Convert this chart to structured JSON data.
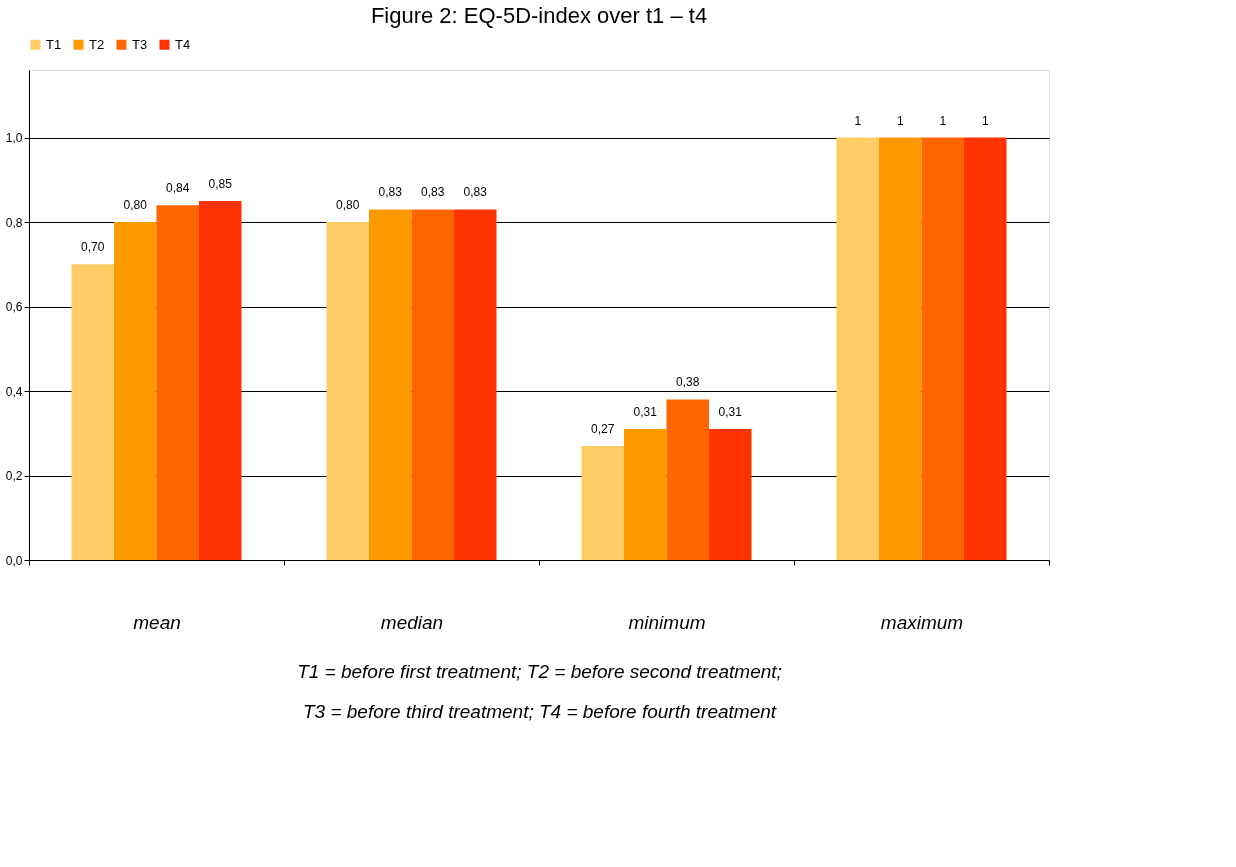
{
  "chart_data": {
    "type": "bar",
    "title": "Figure 2: EQ-5D-index over t1 – t4",
    "categories": [
      "mean",
      "median",
      "minimum",
      "maximum"
    ],
    "series": [
      {
        "name": "T1",
        "color": "#ffcc66",
        "values": [
          0.7,
          0.8,
          0.27,
          1
        ],
        "value_labels": [
          "0,70",
          "0,80",
          "0,27",
          "1"
        ]
      },
      {
        "name": "T2",
        "color": "#ff9900",
        "values": [
          0.8,
          0.83,
          0.31,
          1
        ],
        "value_labels": [
          "0,80",
          "0,83",
          "0,31",
          "1"
        ]
      },
      {
        "name": "T3",
        "color": "#ff6600",
        "values": [
          0.84,
          0.83,
          0.38,
          1
        ],
        "value_labels": [
          "0,84",
          "0,83",
          "0,38",
          "1"
        ]
      },
      {
        "name": "T4",
        "color": "#ff3300",
        "values": [
          0.85,
          0.83,
          0.31,
          1
        ],
        "value_labels": [
          "0,85",
          "0,83",
          "0,31",
          "1"
        ]
      }
    ],
    "ylim": [
      0,
      1.16
    ],
    "yticks": [
      {
        "value": 0,
        "label": "0,0"
      },
      {
        "value": 0.2,
        "label": "0,2"
      },
      {
        "value": 0.4,
        "label": "0,4"
      },
      {
        "value": 0.6,
        "label": "0,6"
      },
      {
        "value": 0.8,
        "label": "0,8"
      },
      {
        "value": 1.0,
        "label": "1,0"
      }
    ],
    "grid": "y",
    "legend": "top",
    "annotations": [
      "T1 = before first treatment; T2 = before second treatment;",
      "T3 = before third treatment; T4 = before fourth treatment"
    ]
  }
}
